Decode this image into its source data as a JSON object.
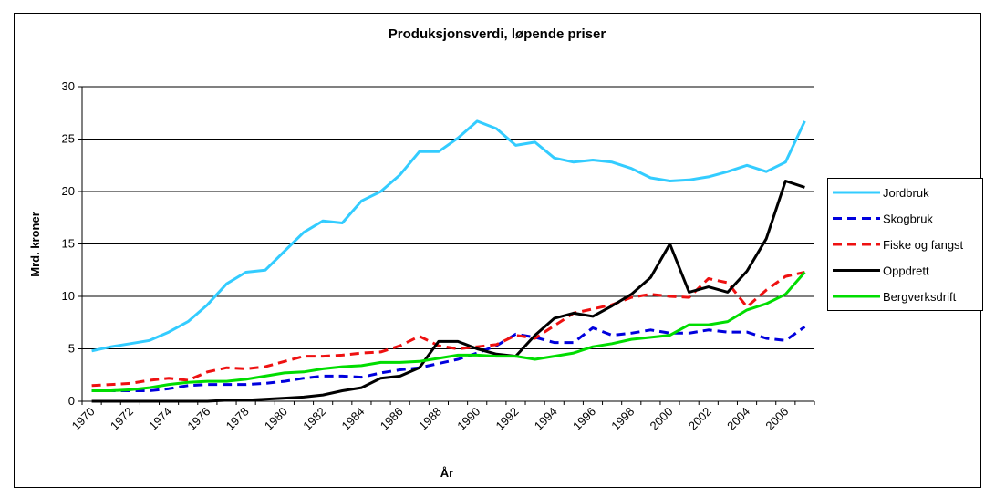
{
  "chart_data": {
    "type": "line",
    "title": "Produksjonsverdi, løpende priser",
    "x_label": "År",
    "y_label": "Mrd. kroner",
    "categories": [
      "1970",
      null,
      "1972",
      null,
      "1974",
      null,
      "1976",
      null,
      "1978",
      null,
      "1980",
      null,
      "1982",
      null,
      "1984",
      null,
      "1986",
      null,
      "1988",
      null,
      "1990",
      null,
      "1992",
      null,
      "1994",
      null,
      "1996",
      null,
      "1998",
      null,
      "2000",
      null,
      "2002",
      null,
      "2004",
      null,
      "2006",
      null
    ],
    "ylim": [
      0,
      30
    ],
    "yticks": [
      0,
      5,
      10,
      15,
      20,
      25,
      30
    ],
    "grid": true,
    "legend": "right",
    "series": [
      {
        "name": "Jordbruk",
        "color": "#33ccff",
        "dashed": false,
        "values": [
          4.8,
          5.2,
          5.5,
          5.8,
          6.6,
          7.6,
          9.2,
          11.2,
          12.3,
          12.5,
          14.3,
          16.1,
          17.2,
          17.0,
          19.1,
          20.0,
          21.6,
          23.8,
          23.8,
          25.1,
          26.7,
          26.0,
          24.4,
          24.7,
          23.2,
          22.8,
          23.0,
          22.8,
          22.2,
          21.3,
          21.0,
          21.1,
          21.4,
          21.9,
          22.5,
          21.9,
          22.8,
          26.7
        ]
      },
      {
        "name": "Skogbruk",
        "color": "#0000dd",
        "dashed": true,
        "values": [
          1.0,
          1.0,
          1.0,
          1.0,
          1.2,
          1.5,
          1.6,
          1.6,
          1.6,
          1.7,
          1.9,
          2.2,
          2.4,
          2.4,
          2.3,
          2.7,
          3.0,
          3.2,
          3.6,
          4.0,
          4.6,
          5.3,
          6.4,
          6.1,
          5.6,
          5.6,
          7.0,
          6.3,
          6.5,
          6.8,
          6.5,
          6.5,
          6.8,
          6.6,
          6.6,
          6.0,
          5.8,
          7.1
        ]
      },
      {
        "name": "Fiske og fangst",
        "color": "#ee1111",
        "dashed": true,
        "values": [
          1.5,
          1.6,
          1.7,
          2.0,
          2.2,
          2.0,
          2.8,
          3.2,
          3.1,
          3.3,
          3.8,
          4.3,
          4.3,
          4.4,
          4.6,
          4.7,
          5.3,
          6.2,
          5.3,
          5.0,
          5.2,
          5.4,
          6.3,
          6.0,
          7.2,
          8.4,
          8.8,
          9.2,
          9.9,
          10.2,
          10.0,
          9.9,
          11.7,
          11.3,
          9.0,
          10.6,
          11.9,
          12.3
        ]
      },
      {
        "name": "Oppdrett",
        "color": "#000000",
        "dashed": false,
        "values": [
          0,
          0,
          0,
          0,
          0,
          0,
          0,
          0.1,
          0.1,
          0.2,
          0.3,
          0.4,
          0.6,
          1.0,
          1.3,
          2.2,
          2.4,
          3.2,
          5.7,
          5.7,
          5.0,
          4.5,
          4.3,
          6.3,
          7.9,
          8.4,
          8.1,
          9.1,
          10.2,
          11.8,
          15.0,
          10.4,
          10.9,
          10.4,
          12.4,
          15.5,
          21.0,
          20.4
        ]
      },
      {
        "name": "Bergverksdrift",
        "color": "#00dd00",
        "dashed": false,
        "values": [
          1.0,
          1.0,
          1.1,
          1.3,
          1.6,
          1.8,
          1.9,
          1.9,
          2.1,
          2.4,
          2.7,
          2.8,
          3.1,
          3.3,
          3.4,
          3.7,
          3.7,
          3.8,
          4.1,
          4.4,
          4.4,
          4.3,
          4.3,
          4.0,
          4.3,
          4.6,
          5.2,
          5.5,
          5.9,
          6.1,
          6.3,
          7.3,
          7.3,
          7.6,
          8.7,
          9.3,
          10.2,
          12.3
        ]
      }
    ]
  }
}
